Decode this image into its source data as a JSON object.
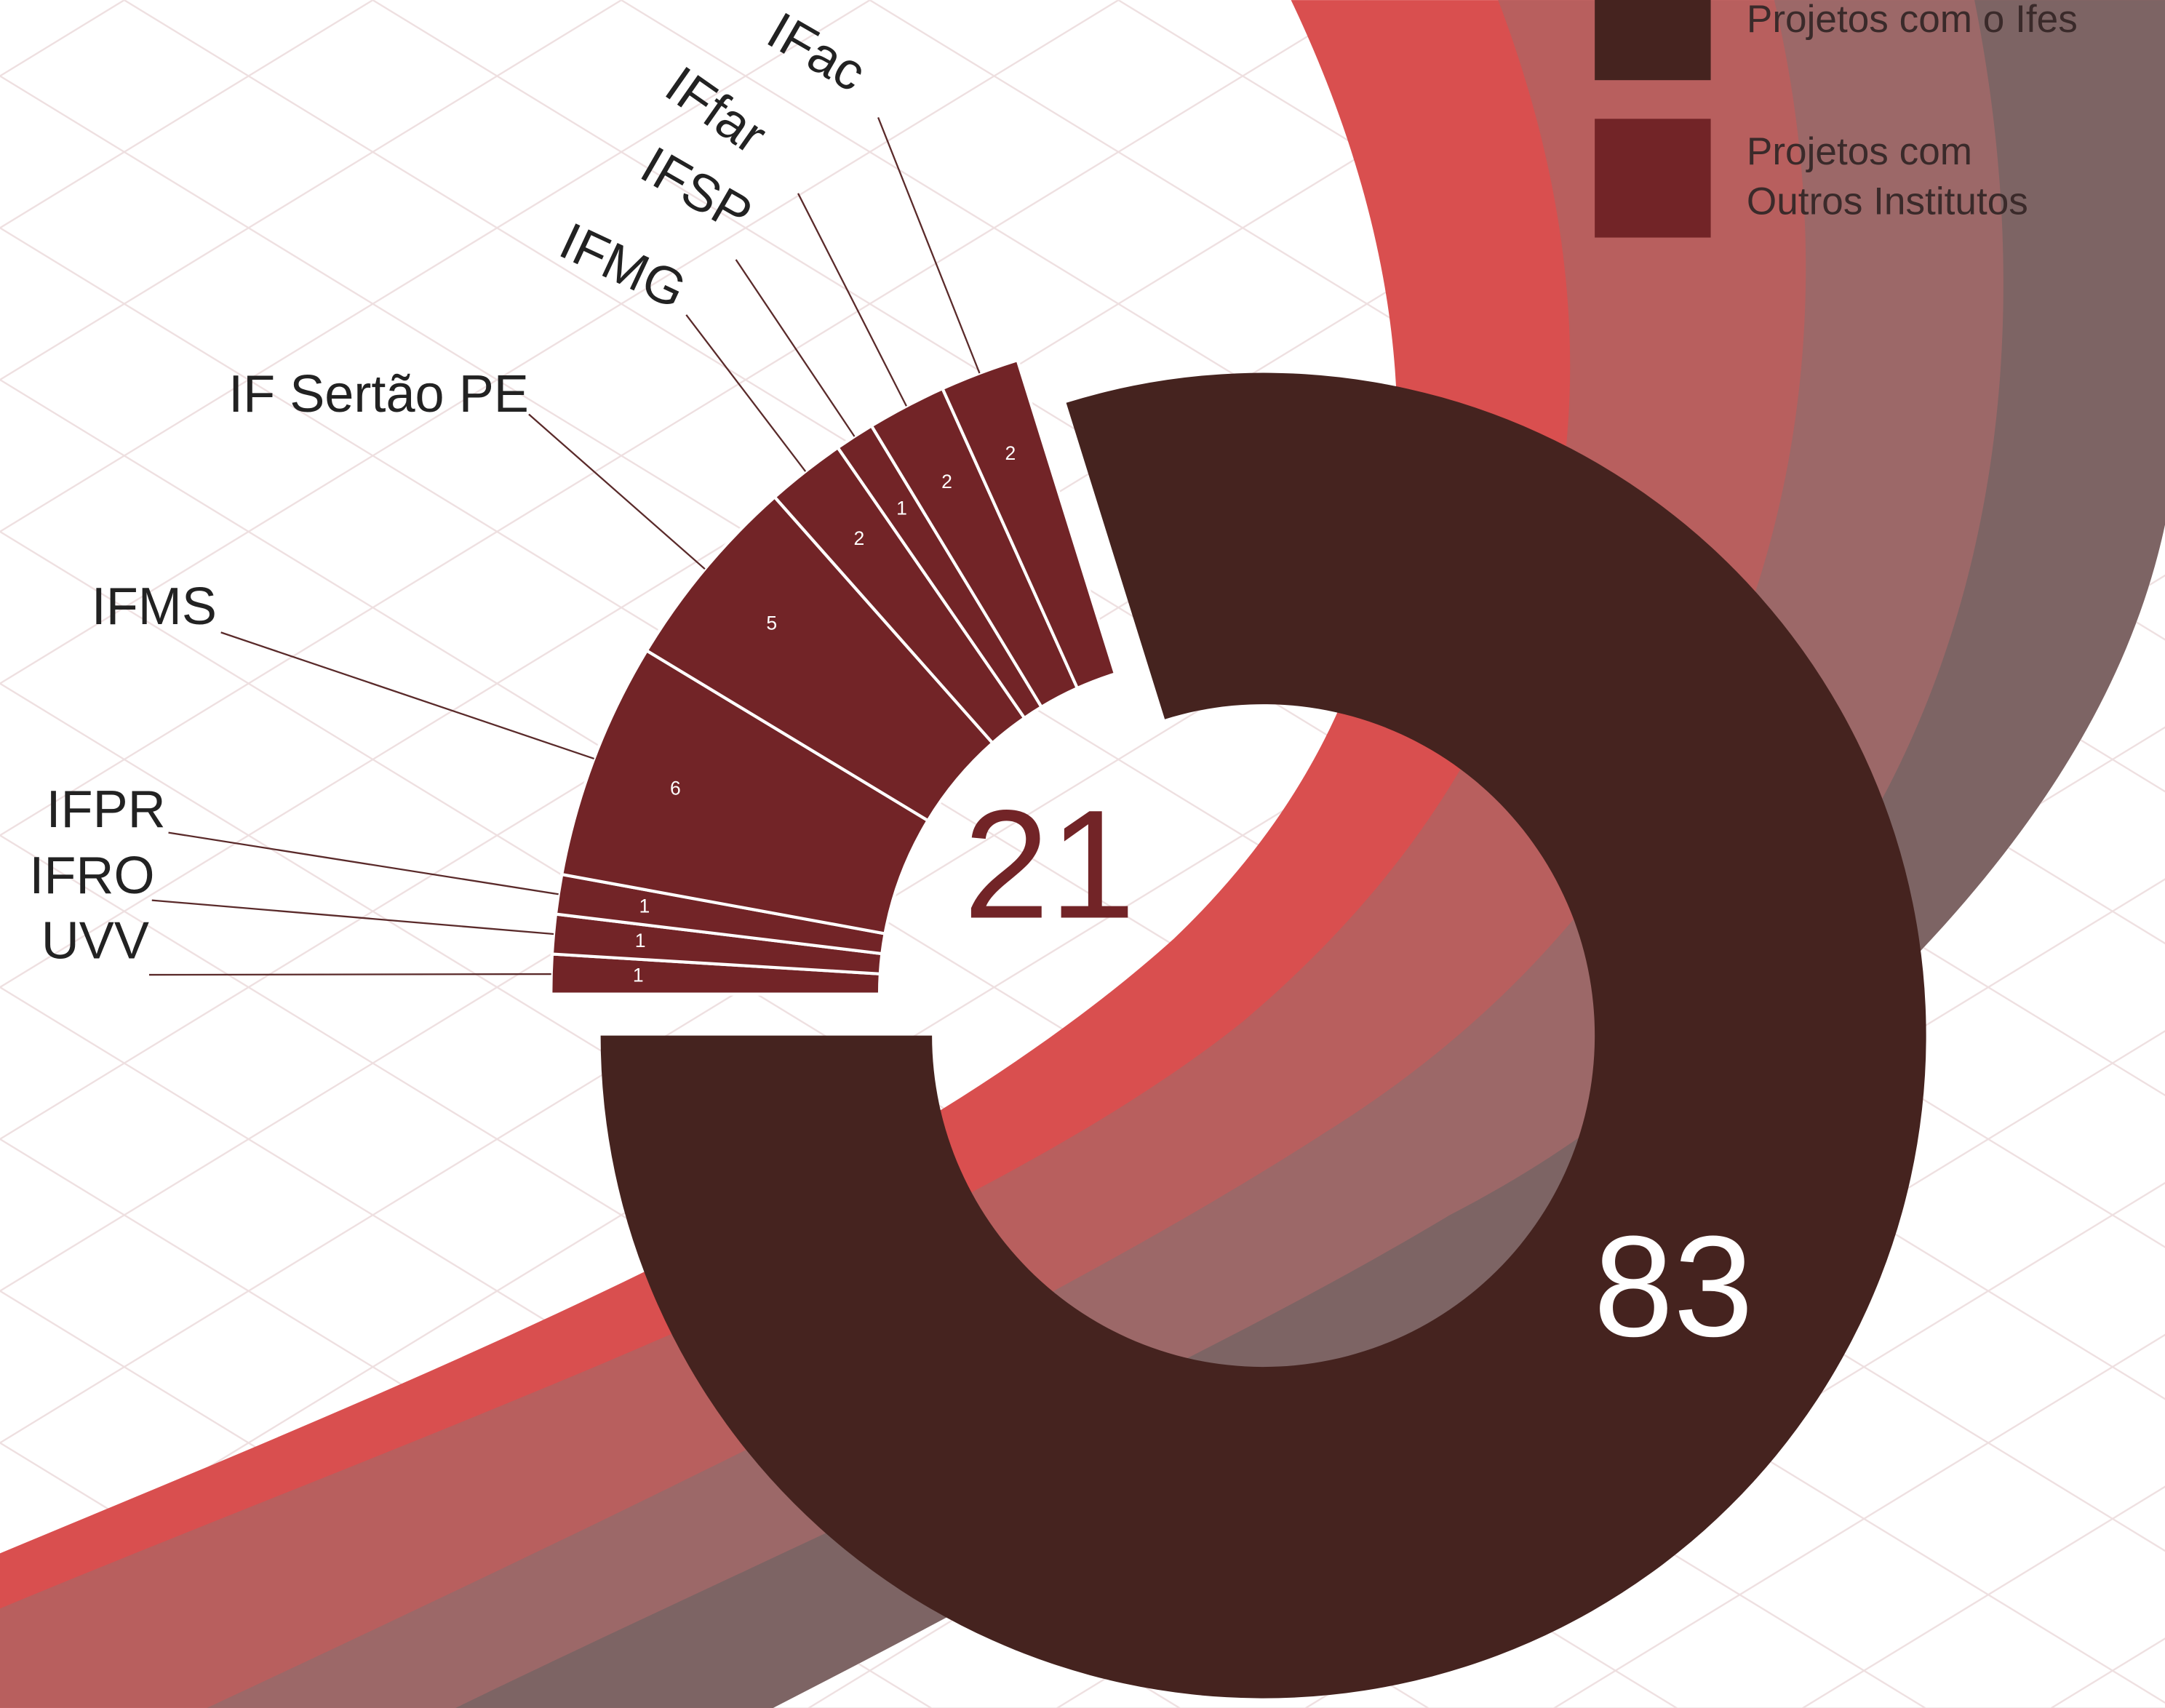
{
  "chart_data": {
    "type": "donut",
    "slices": [
      {
        "name": "Projetos com o Ifes",
        "value": 83,
        "color": "#45231f"
      },
      {
        "name": "Projetos com Outros Institutos",
        "value": 21,
        "color": "#722427",
        "breakdown": {
          "categories": [
            "UVV",
            "IFRO",
            "IFPR",
            "IFMS",
            "IF Sertão PE",
            "IFMG",
            "IFSP",
            "IFfar",
            "IFac"
          ],
          "values": [
            1,
            1,
            1,
            6,
            5,
            2,
            1,
            2,
            2
          ]
        }
      }
    ],
    "legend": "top-right"
  }
}
